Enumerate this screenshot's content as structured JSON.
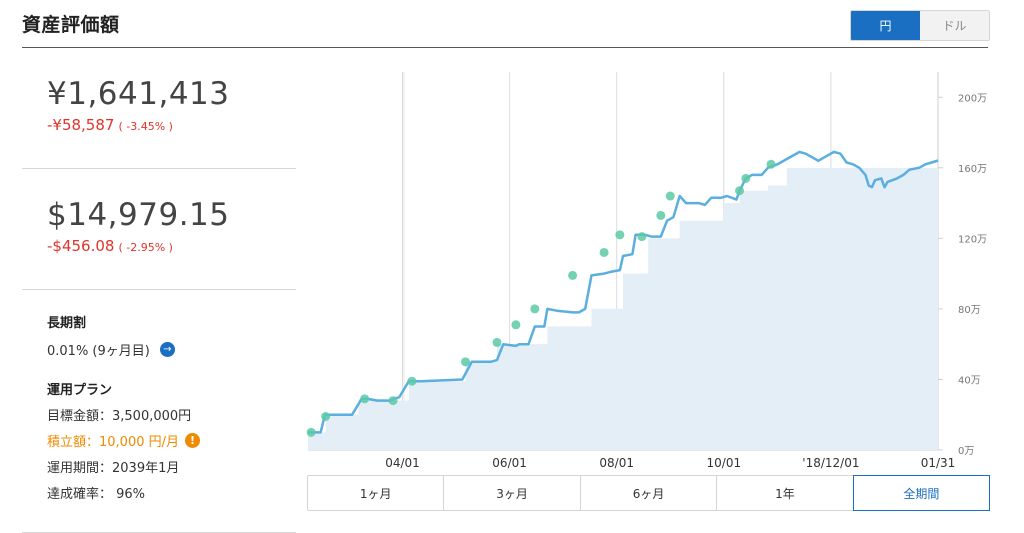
{
  "header": {
    "title": "資産評価額"
  },
  "currency_toggle": {
    "options": [
      {
        "label": "円",
        "active": true
      },
      {
        "label": "ドル",
        "active": false
      }
    ]
  },
  "jpy": {
    "value": "¥1,641,413",
    "change": "-¥58,587",
    "change_pct": "( -3.45% )"
  },
  "usd": {
    "value": "$14,979.15",
    "change": "-$456.08",
    "change_pct": "( -2.95% )"
  },
  "long_term": {
    "title": "長期割",
    "value": "0.01% (9ヶ月目)"
  },
  "plan": {
    "title": "運用プラン",
    "target": "目標金額：3,500,000円",
    "monthly": "積立額：10,000 円/月",
    "period": "運用期間：2039年1月",
    "probability": "達成確率：  96%"
  },
  "period_tabs": [
    {
      "label": "1ヶ月",
      "active": false
    },
    {
      "label": "3ヶ月",
      "active": false
    },
    {
      "label": "6ヶ月",
      "active": false
    },
    {
      "label": "1年",
      "active": false
    },
    {
      "label": "全期間",
      "active": true
    }
  ],
  "colors": {
    "accent": "#1a6fc2",
    "negative": "#e0342b",
    "warning": "#f08a00",
    "line": "#5aaee0",
    "area": "#e3eef7",
    "marker": "#5cc9a7"
  },
  "chart_data": {
    "type": "area",
    "title": "",
    "xlabel": "",
    "ylabel": "",
    "ylim": [
      0,
      2200000
    ],
    "yticks": [
      0,
      400000,
      800000,
      1200000,
      1600000,
      2000000
    ],
    "ytick_labels": [
      "0万",
      "40万",
      "80万",
      "120万",
      "160万",
      "200万"
    ],
    "xticks": [
      {
        "label": "04/01",
        "t": 0.15
      },
      {
        "label": "06/01",
        "t": 0.32
      },
      {
        "label": "08/01",
        "t": 0.49
      },
      {
        "label": "10/01",
        "t": 0.66
      },
      {
        "label": "'18/12/01",
        "t": 0.83
      },
      {
        "label": "01/31",
        "t": 1.0
      }
    ],
    "series": [
      {
        "values": [
          [
            0.0,
            100000
          ],
          [
            0.02,
            100000
          ],
          [
            0.027,
            200000
          ],
          [
            0.07,
            200000
          ],
          [
            0.085,
            290000
          ],
          [
            0.095,
            290000
          ],
          [
            0.11,
            280000
          ],
          [
            0.13,
            280000
          ],
          [
            0.145,
            300000
          ],
          [
            0.16,
            390000
          ],
          [
            0.18,
            390000
          ],
          [
            0.245,
            400000
          ],
          [
            0.26,
            500000
          ],
          [
            0.265,
            500000
          ],
          [
            0.29,
            500000
          ],
          [
            0.3,
            510000
          ],
          [
            0.31,
            600000
          ],
          [
            0.33,
            590000
          ],
          [
            0.335,
            600000
          ],
          [
            0.35,
            600000
          ],
          [
            0.36,
            700000
          ],
          [
            0.375,
            700000
          ],
          [
            0.38,
            800000
          ],
          [
            0.395,
            790000
          ],
          [
            0.42,
            780000
          ],
          [
            0.43,
            780000
          ],
          [
            0.44,
            800000
          ],
          [
            0.45,
            990000
          ],
          [
            0.47,
            1000000
          ],
          [
            0.48,
            1010000
          ],
          [
            0.495,
            1020000
          ],
          [
            0.5,
            1100000
          ],
          [
            0.515,
            1110000
          ],
          [
            0.52,
            1220000
          ],
          [
            0.535,
            1220000
          ],
          [
            0.545,
            1210000
          ],
          [
            0.56,
            1210000
          ],
          [
            0.57,
            1300000
          ],
          [
            0.58,
            1320000
          ],
          [
            0.59,
            1440000
          ],
          [
            0.6,
            1400000
          ],
          [
            0.62,
            1400000
          ],
          [
            0.63,
            1390000
          ],
          [
            0.64,
            1430000
          ],
          [
            0.655,
            1430000
          ],
          [
            0.665,
            1440000
          ],
          [
            0.68,
            1420000
          ],
          [
            0.685,
            1470000
          ],
          [
            0.695,
            1540000
          ],
          [
            0.705,
            1560000
          ],
          [
            0.72,
            1560000
          ],
          [
            0.73,
            1600000
          ],
          [
            0.745,
            1620000
          ],
          [
            0.76,
            1650000
          ],
          [
            0.77,
            1670000
          ],
          [
            0.78,
            1690000
          ],
          [
            0.79,
            1680000
          ],
          [
            0.8,
            1660000
          ],
          [
            0.81,
            1640000
          ],
          [
            0.82,
            1660000
          ],
          [
            0.835,
            1690000
          ],
          [
            0.845,
            1680000
          ],
          [
            0.855,
            1630000
          ],
          [
            0.865,
            1620000
          ],
          [
            0.875,
            1600000
          ],
          [
            0.885,
            1560000
          ],
          [
            0.89,
            1500000
          ],
          [
            0.895,
            1490000
          ],
          [
            0.9,
            1530000
          ],
          [
            0.91,
            1540000
          ],
          [
            0.915,
            1490000
          ],
          [
            0.92,
            1520000
          ],
          [
            0.935,
            1540000
          ],
          [
            0.945,
            1560000
          ],
          [
            0.955,
            1590000
          ],
          [
            0.97,
            1600000
          ],
          [
            0.98,
            1620000
          ],
          [
            0.99,
            1630000
          ],
          [
            1.0,
            1641413
          ]
        ]
      },
      {
        "values": [
          [
            0.0,
            100000
          ],
          [
            0.028,
            200000
          ],
          [
            0.08,
            290000
          ],
          [
            0.13,
            280000
          ],
          [
            0.16,
            390000
          ],
          [
            0.25,
            500000
          ],
          [
            0.3,
            600000
          ],
          [
            0.33,
            600000
          ],
          [
            0.38,
            700000
          ],
          [
            0.45,
            800000
          ],
          [
            0.5,
            1000000
          ],
          [
            0.54,
            1200000
          ],
          [
            0.59,
            1300000
          ],
          [
            0.66,
            1400000
          ],
          [
            0.685,
            1470000
          ],
          [
            0.73,
            1500000
          ],
          [
            0.76,
            1600000
          ],
          [
            1.0,
            1700000
          ]
        ]
      }
    ],
    "markers": [
      [
        0.005,
        100000
      ],
      [
        0.028,
        190000
      ],
      [
        0.09,
        290000
      ],
      [
        0.135,
        280000
      ],
      [
        0.165,
        390000
      ],
      [
        0.25,
        500000
      ],
      [
        0.3,
        610000
      ],
      [
        0.33,
        710000
      ],
      [
        0.36,
        800000
      ],
      [
        0.42,
        990000
      ],
      [
        0.47,
        1120000
      ],
      [
        0.495,
        1220000
      ],
      [
        0.53,
        1210000
      ],
      [
        0.56,
        1330000
      ],
      [
        0.575,
        1440000
      ],
      [
        0.685,
        1470000
      ],
      [
        0.695,
        1540000
      ],
      [
        0.735,
        1620000
      ]
    ],
    "grid": true,
    "legend": "none"
  }
}
